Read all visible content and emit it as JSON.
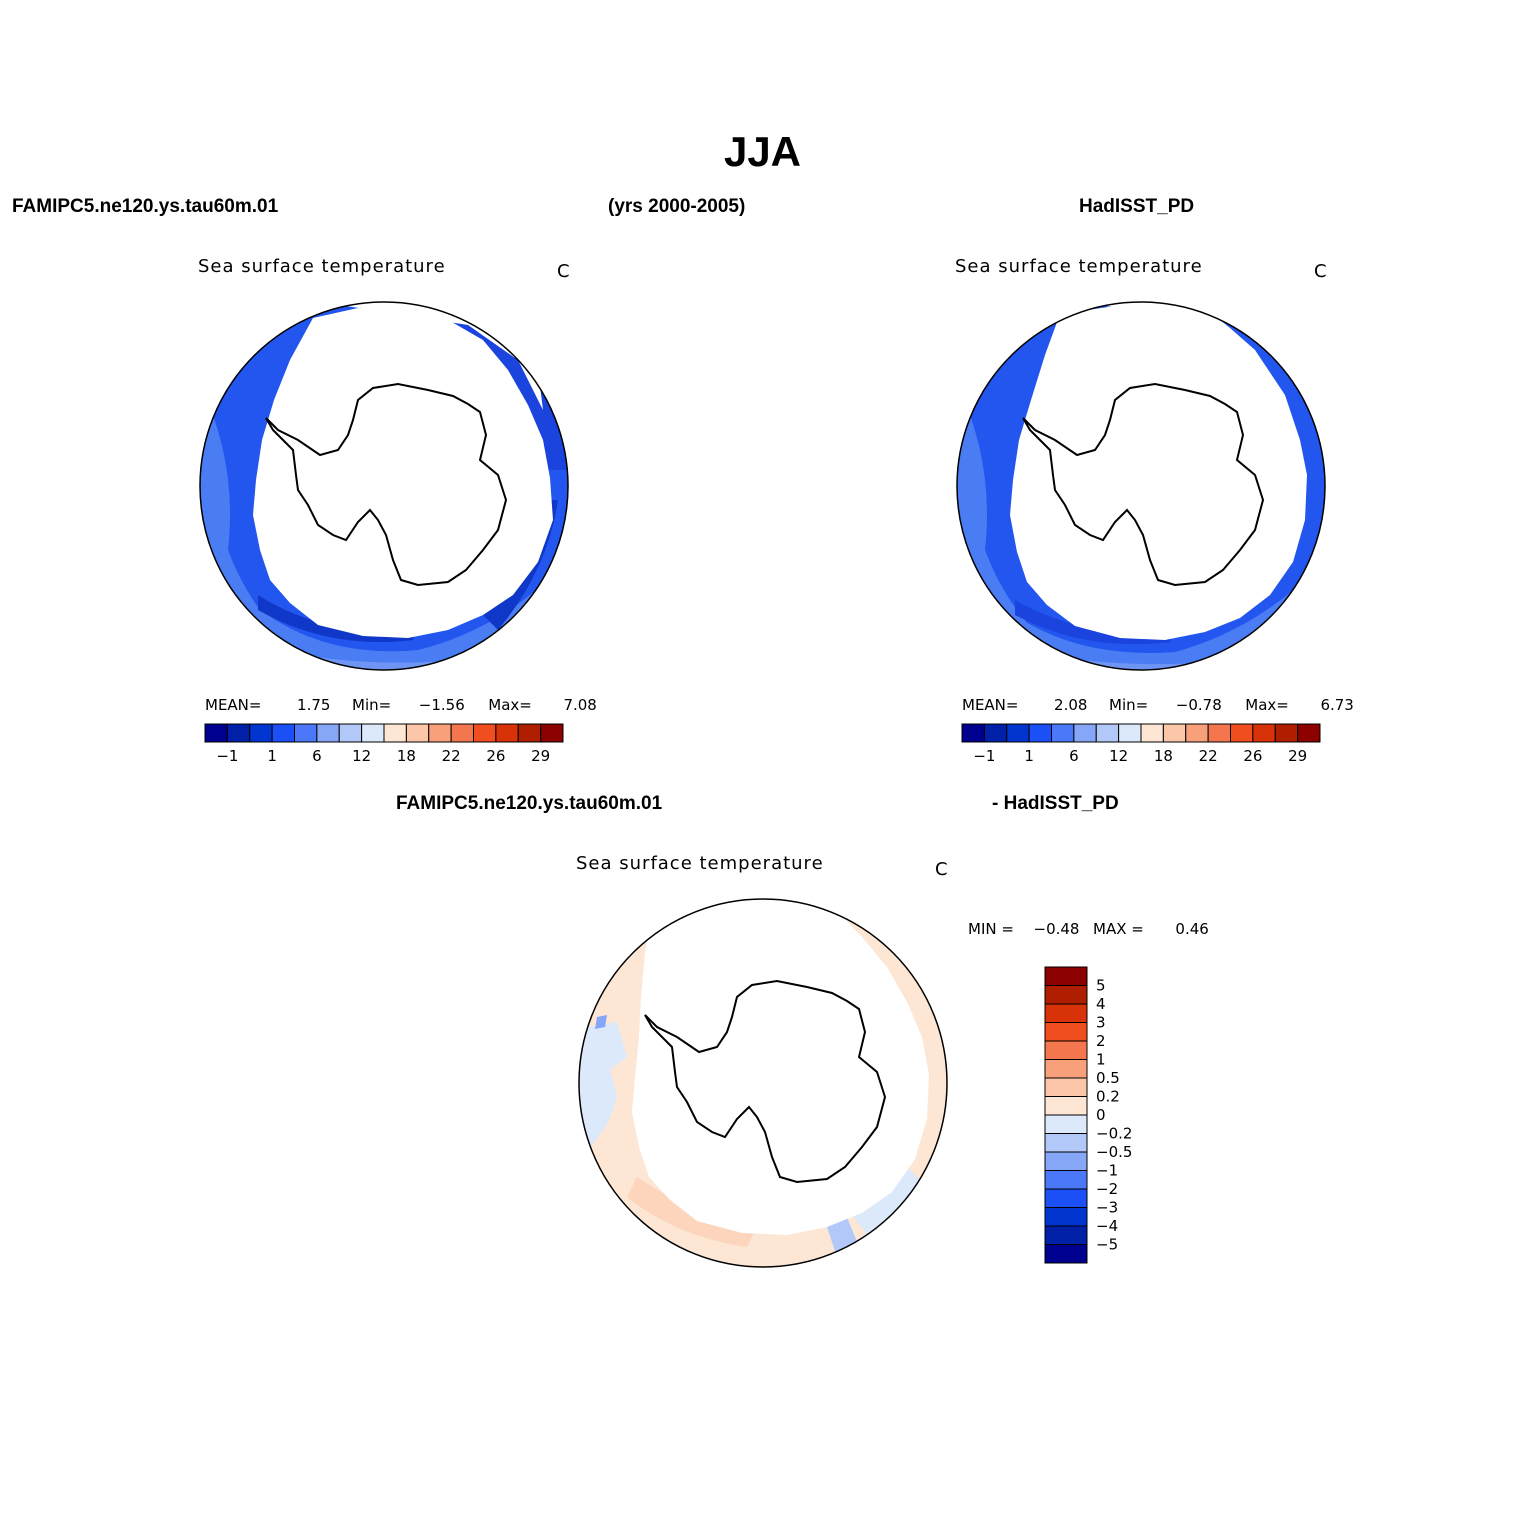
{
  "title": "JJA",
  "header": {
    "left": "FAMIPC5.ne120.ys.tau60m.01",
    "center": "(yrs 2000-2005)",
    "right": "HadISST_PD"
  },
  "diff_header": {
    "left": "FAMIPC5.ne120.ys.tau60m.01",
    "right": "- HadISST_PD"
  },
  "panels": [
    {
      "id": "model",
      "title": "Sea surface temperature",
      "unit": "C",
      "stats": {
        "mean_label": "MEAN=",
        "mean": "1.75",
        "min_label": "Min=",
        "min": "−1.56",
        "max_label": "Max=",
        "max": "7.08"
      }
    },
    {
      "id": "obs",
      "title": "Sea surface temperature",
      "unit": "C",
      "stats": {
        "mean_label": "MEAN=",
        "mean": "2.08",
        "min_label": "Min=",
        "min": "−0.78",
        "max_label": "Max=",
        "max": "6.73"
      }
    },
    {
      "id": "diff",
      "title": "Sea surface temperature",
      "unit": "C",
      "stats": {
        "min_label": "MIN =",
        "min": "−0.48",
        "max_label": "MAX =",
        "max": "0.46"
      }
    }
  ],
  "colors": {
    "abs_scale": [
      "#00008f",
      "#0020a8",
      "#0035d0",
      "#1a50f5",
      "#4a78f8",
      "#86a6f8",
      "#b2c8f8",
      "#dce9fb",
      "#fde7d4",
      "#fbc7a8",
      "#f7a07a",
      "#f4764e",
      "#f04e1e",
      "#d83208",
      "#b01e00",
      "#8c0000"
    ],
    "diff_scale": [
      "#8c0000",
      "#b01e00",
      "#d83208",
      "#f04e1e",
      "#f4764e",
      "#f7a07a",
      "#fbc7a8",
      "#fde7d4",
      "#dce9fb",
      "#b2c8f8",
      "#86a6f8",
      "#4a78f8",
      "#1a50f5",
      "#0035d0",
      "#0020a8",
      "#00008f"
    ]
  },
  "chart_data": [
    {
      "type": "heatmap",
      "projection": "south-polar-stereographic",
      "title": "Sea surface temperature",
      "unit": "C",
      "colorbar": {
        "orientation": "horizontal",
        "tick_labels": [
          "−1",
          "1",
          "6",
          "12",
          "18",
          "22",
          "26",
          "29"
        ]
      },
      "mean": 1.75,
      "min": -1.56,
      "max": 7.08
    },
    {
      "type": "heatmap",
      "projection": "south-polar-stereographic",
      "title": "Sea surface temperature",
      "unit": "C",
      "colorbar": {
        "orientation": "horizontal",
        "tick_labels": [
          "−1",
          "1",
          "6",
          "12",
          "18",
          "22",
          "26",
          "29"
        ]
      },
      "mean": 2.08,
      "min": -0.78,
      "max": 6.73
    },
    {
      "type": "heatmap",
      "projection": "south-polar-stereographic",
      "title": "Sea surface temperature",
      "unit": "C",
      "colorbar": {
        "orientation": "vertical",
        "tick_labels": [
          "5",
          "4",
          "3",
          "2",
          "1",
          "0.5",
          "0.2",
          "0",
          "−0.2",
          "−0.5",
          "−1",
          "−2",
          "−3",
          "−4",
          "−5"
        ]
      },
      "min": -0.48,
      "max": 0.46
    }
  ]
}
